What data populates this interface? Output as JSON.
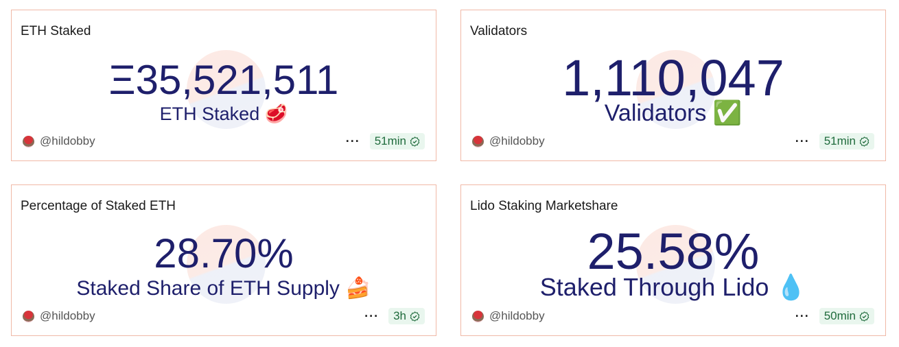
{
  "cards": [
    {
      "title": "ETH Staked",
      "value": "Ξ35,521,511",
      "subtitle": "ETH Staked 🥩",
      "author": "@hildobby",
      "age": "51min"
    },
    {
      "title": "Validators",
      "value": "1,110,047",
      "subtitle": "Validators ✅",
      "author": "@hildobby",
      "age": "51min"
    },
    {
      "title": "Percentage of Staked ETH",
      "value": "28.70%",
      "subtitle": "Staked Share of ETH Supply 🍰",
      "author": "@hildobby",
      "age": "3h"
    },
    {
      "title": "Lido Staking Marketshare",
      "value": "25.58%",
      "subtitle": "Staked Through Lido 💧",
      "author": "@hildobby",
      "age": "50min"
    }
  ],
  "colors": {
    "value_text": "#1e1f6b",
    "card_border": "#f0b8a6",
    "badge_bg": "#e9f6ee",
    "badge_text": "#1f6b3c"
  },
  "icons": {
    "more": "more-horizontal-icon",
    "fresh": "verified-check-icon"
  }
}
